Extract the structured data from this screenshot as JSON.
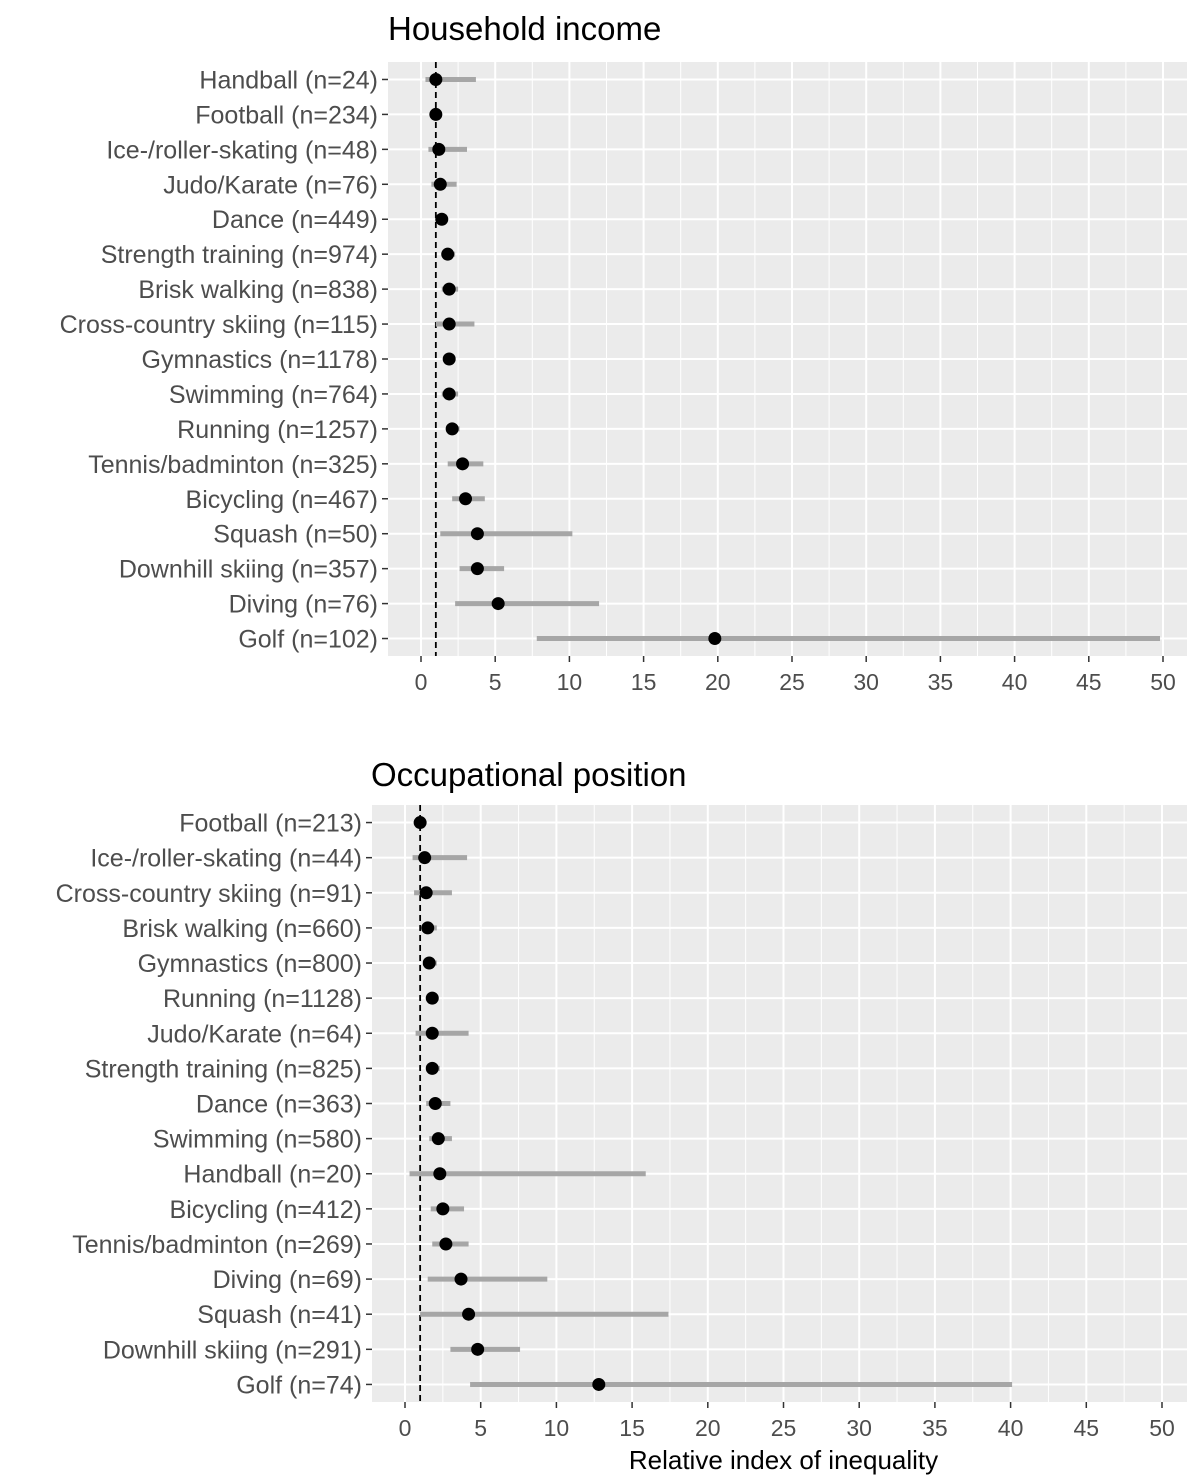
{
  "chart_data": [
    {
      "type": "scatter",
      "title": "Household income",
      "xlabel": "",
      "ylabel": "",
      "xlim": [
        0,
        50
      ],
      "x_ticks": [
        "0",
        "5",
        "10",
        "15",
        "20",
        "25",
        "30",
        "35",
        "40",
        "45",
        "50"
      ],
      "reference_line": 1,
      "grid": true,
      "point_color": "#000000",
      "ci_color": "#a6a6a6",
      "panel_background": "#ebebeb",
      "categories": [
        "Handball (n=24)",
        "Football (n=234)",
        "Ice-/roller-skating (n=48)",
        "Judo/Karate (n=76)",
        "Dance (n=449)",
        "Strength training (n=974)",
        "Brisk walking (n=838)",
        "Cross-country skiing (n=115)",
        "Gymnastics (n=1178)",
        "Swimming (n=764)",
        "Running (n=1257)",
        "Tennis/badminton (n=325)",
        "Bicycling (n=467)",
        "Squash (n=50)",
        "Downhill skiing (n=357)",
        "Diving (n=76)",
        "Golf (n=102)"
      ],
      "values": [
        1.0,
        1.0,
        1.2,
        1.3,
        1.4,
        1.8,
        1.9,
        1.9,
        1.9,
        1.9,
        2.1,
        2.8,
        3.0,
        3.8,
        3.8,
        5.2,
        19.8
      ],
      "ci_low": [
        0.3,
        0.8,
        0.5,
        0.7,
        1.0,
        1.4,
        1.4,
        1.0,
        1.5,
        1.4,
        1.7,
        1.8,
        2.1,
        1.3,
        2.6,
        2.3,
        7.8
      ],
      "ci_high": [
        3.7,
        1.3,
        3.1,
        2.4,
        1.8,
        2.3,
        2.5,
        3.6,
        2.3,
        2.5,
        2.6,
        4.2,
        4.3,
        10.2,
        5.6,
        12.0,
        49.8
      ]
    },
    {
      "type": "scatter",
      "title": "Occupational position",
      "xlabel": "Relative index of inequality",
      "ylabel": "",
      "xlim": [
        0,
        50
      ],
      "x_ticks": [
        "0",
        "5",
        "10",
        "15",
        "20",
        "25",
        "30",
        "35",
        "40",
        "45",
        "50"
      ],
      "reference_line": 1,
      "grid": true,
      "point_color": "#000000",
      "ci_color": "#a6a6a6",
      "panel_background": "#ebebeb",
      "categories": [
        "Football (n=213)",
        "Ice-/roller-skating (n=44)",
        "Cross-country skiing (n=91)",
        "Brisk walking (n=660)",
        "Gymnastics (n=800)",
        "Running (n=1128)",
        "Judo/Karate (n=64)",
        "Strength training (n=825)",
        "Dance (n=363)",
        "Swimming (n=580)",
        "Handball (n=20)",
        "Bicycling (n=412)",
        "Tennis/badminton (n=269)",
        "Diving (n=69)",
        "Squash (n=41)",
        "Downhill skiing (n=291)",
        "Golf (n=74)"
      ],
      "values": [
        1.0,
        1.3,
        1.4,
        1.5,
        1.6,
        1.8,
        1.8,
        1.8,
        2.0,
        2.2,
        2.3,
        2.5,
        2.7,
        3.7,
        4.2,
        4.8,
        12.8
      ],
      "ci_low": [
        0.7,
        0.5,
        0.6,
        1.1,
        1.2,
        1.5,
        0.7,
        1.5,
        1.4,
        1.6,
        0.3,
        1.7,
        1.8,
        1.5,
        1.0,
        3.0,
        4.3
      ],
      "ci_high": [
        1.3,
        4.1,
        3.1,
        2.1,
        2.1,
        2.2,
        4.2,
        2.3,
        3.0,
        3.1,
        15.9,
        3.9,
        4.2,
        9.4,
        17.4,
        7.6,
        40.1
      ]
    }
  ]
}
